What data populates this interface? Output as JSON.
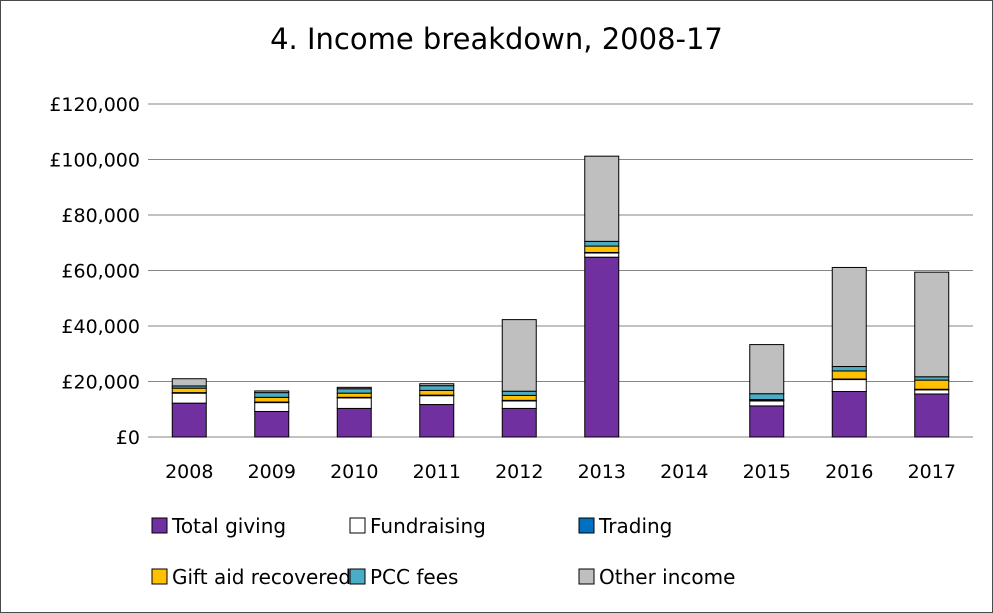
{
  "chart_data": {
    "type": "bar",
    "stacked": true,
    "title": "4. Income breakdown, 2008-17",
    "categories": [
      "2008",
      "2009",
      "2010",
      "2011",
      "2012",
      "2013",
      "2014",
      "2015",
      "2016",
      "2017"
    ],
    "ylim": [
      0,
      120000
    ],
    "yticks": [
      0,
      20000,
      40000,
      60000,
      80000,
      100000,
      120000
    ],
    "ytick_labels": [
      "£0",
      "£20,000",
      "£40,000",
      "£60,000",
      "£80,000",
      "£100,000",
      "£120,000"
    ],
    "grid": true,
    "legend_position": "bottom",
    "series": [
      {
        "name": "Total giving",
        "color": "#7030a0",
        "values": [
          12200,
          9200,
          10300,
          11700,
          10300,
          64800,
          0,
          11200,
          16400,
          15500
        ]
      },
      {
        "name": "Fundraising",
        "color": "#ffffff",
        "values": [
          3600,
          3200,
          3800,
          3200,
          2700,
          1500,
          0,
          1800,
          4300,
          1500
        ]
      },
      {
        "name": "Trading",
        "color": "#0070c0",
        "values": [
          200,
          200,
          200,
          200,
          200,
          200,
          0,
          200,
          200,
          200
        ]
      },
      {
        "name": "Gift aid recovered",
        "color": "#ffc000",
        "values": [
          1600,
          1700,
          1500,
          1700,
          1800,
          2300,
          0,
          300,
          2900,
          3300
        ]
      },
      {
        "name": "PCC fees",
        "color": "#4bacc6",
        "values": [
          800,
          1700,
          1600,
          1700,
          1500,
          1700,
          0,
          2100,
          1600,
          1200
        ]
      },
      {
        "name": "Other income",
        "color": "#bfbfbf",
        "values": [
          2600,
          600,
          500,
          700,
          25800,
          30700,
          0,
          17700,
          35700,
          37700
        ]
      }
    ]
  }
}
